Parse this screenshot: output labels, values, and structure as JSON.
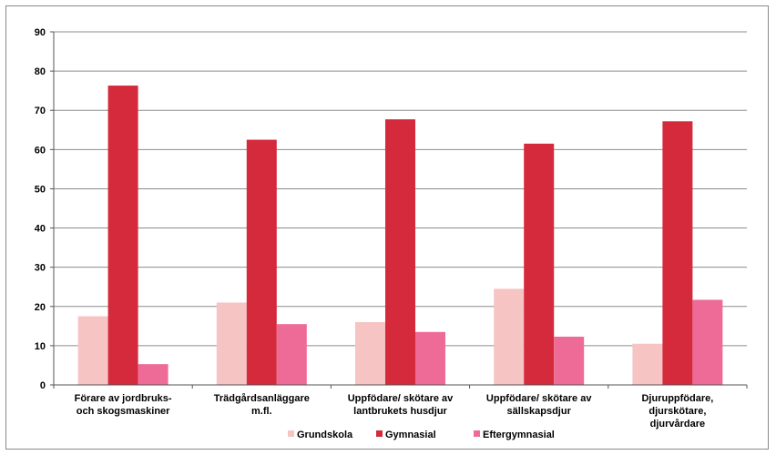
{
  "chart_data": {
    "type": "bar",
    "title": "",
    "xlabel": "",
    "ylabel": "",
    "ylim": [
      0,
      90
    ],
    "y_ticks": [
      0,
      10,
      20,
      30,
      40,
      50,
      60,
      70,
      80,
      90
    ],
    "grid": true,
    "legend_position": "bottom",
    "categories": [
      [
        "Förare av jordbruks-",
        "och skogsmaskiner"
      ],
      [
        "Trädgårdsanläggare",
        "m.fl."
      ],
      [
        "Uppfödare/ skötare av",
        "lantbrukets husdjur"
      ],
      [
        "Uppfödare/ skötare av",
        "sällskapsdjur"
      ],
      [
        "Djuruppfödare,",
        "djurskötare,",
        "djurvårdare"
      ]
    ],
    "series": [
      {
        "name": "Grundskola",
        "color": "#f7c4c4",
        "values": [
          17.5,
          21,
          16,
          24.5,
          10.5
        ]
      },
      {
        "name": "Gymnasial",
        "color": "#d42a3c",
        "values": [
          76.3,
          62.5,
          67.7,
          61.5,
          67.2
        ]
      },
      {
        "name": "Eftergymnasial",
        "color": "#ee6b97",
        "values": [
          5.3,
          15.5,
          13.5,
          12.3,
          21.7
        ]
      }
    ]
  }
}
